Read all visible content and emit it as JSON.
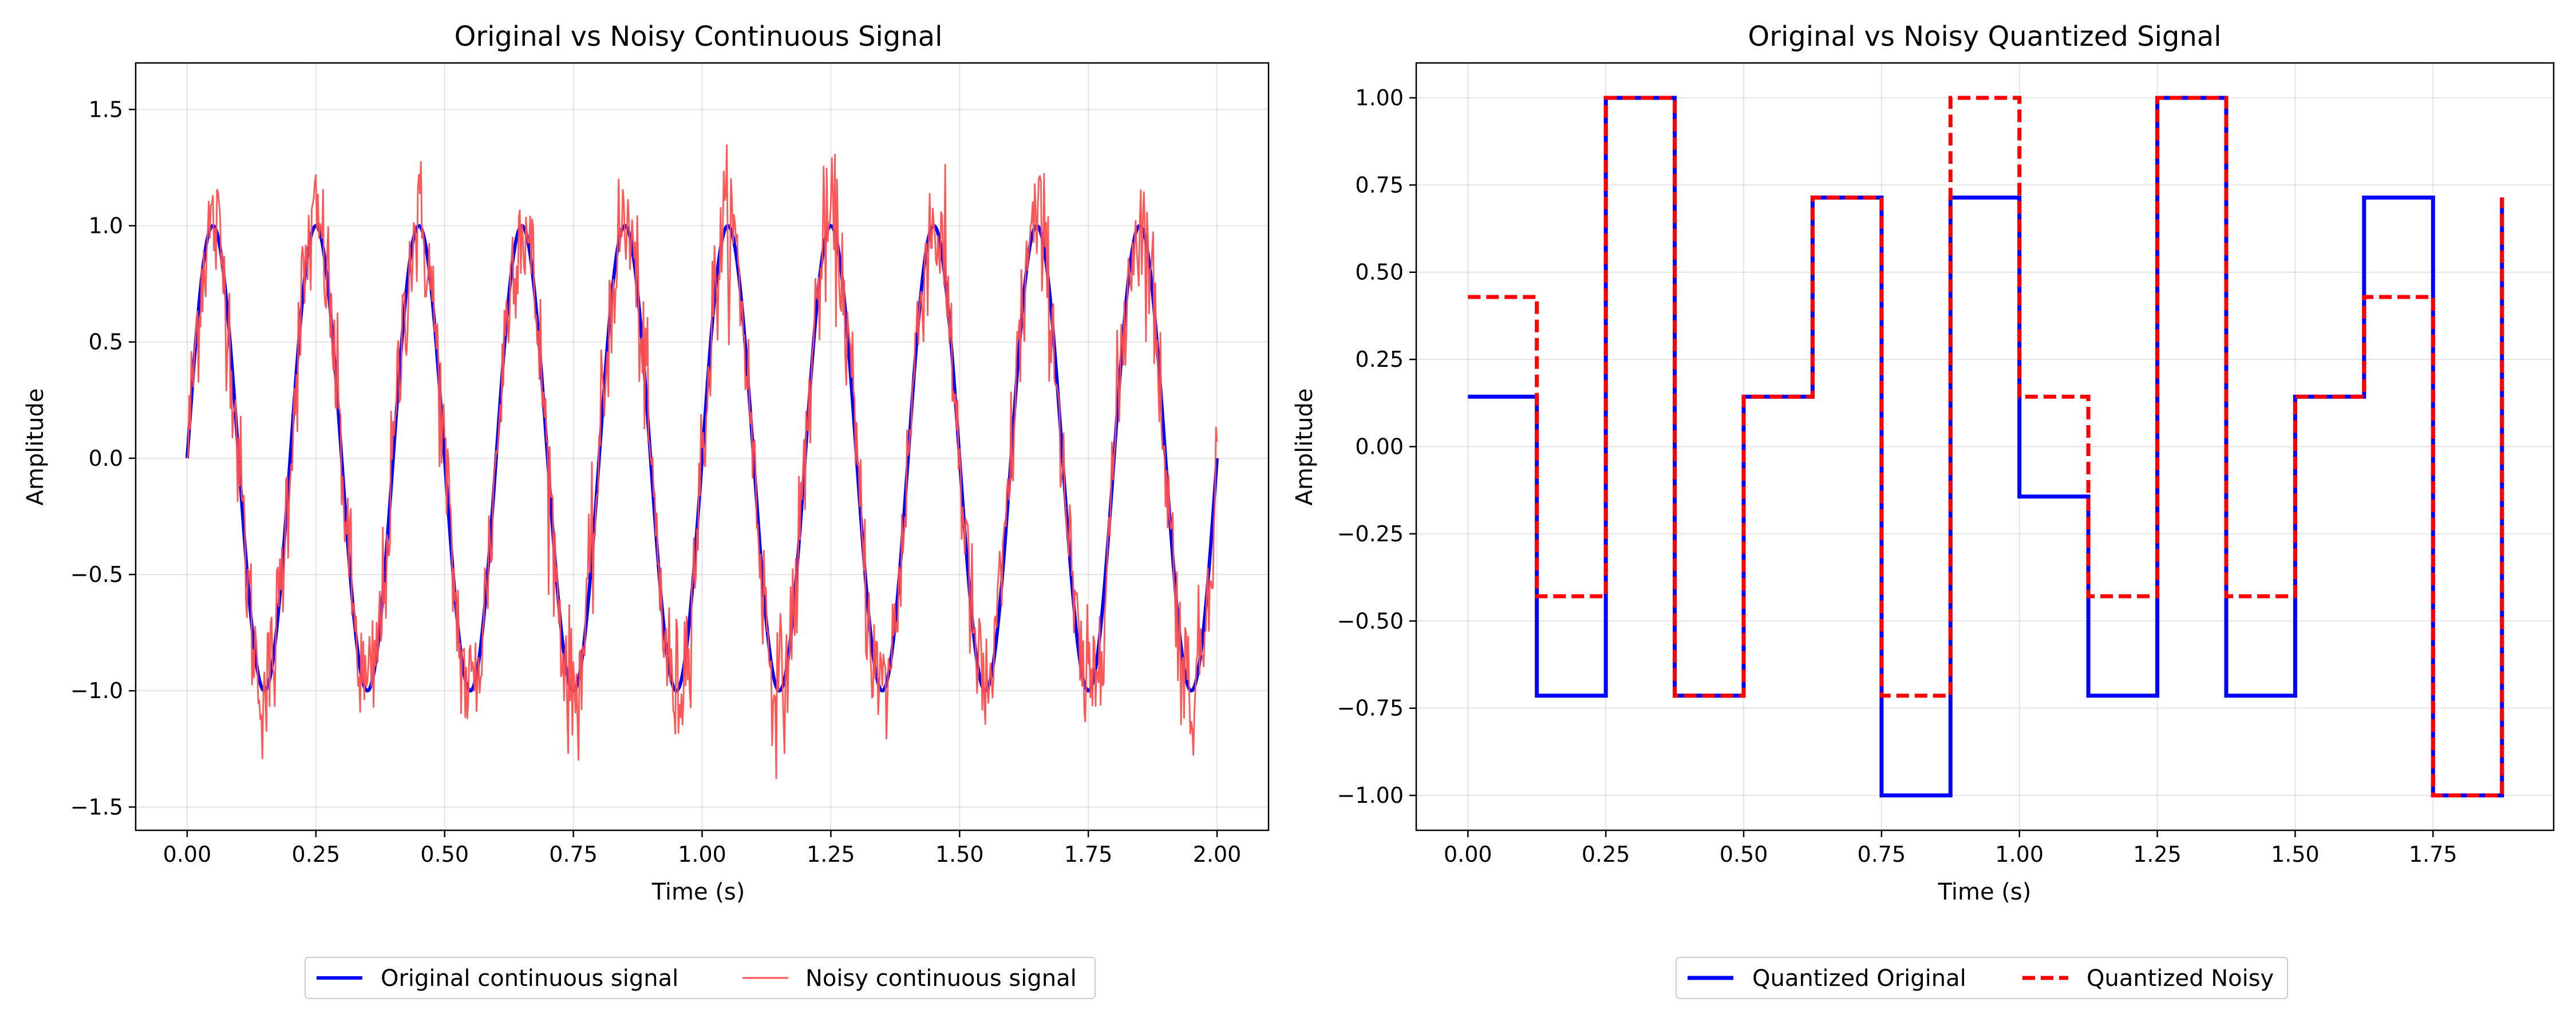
{
  "chart_data": [
    {
      "type": "line",
      "title": "Original vs Noisy Continuous Signal",
      "xlabel": "Time (s)",
      "ylabel": "Amplitude",
      "xlim": [
        -0.1,
        2.1
      ],
      "ylim": [
        -1.6,
        1.7
      ],
      "xticks": [
        0.0,
        0.25,
        0.5,
        0.75,
        1.0,
        1.25,
        1.5,
        1.75,
        2.0
      ],
      "xtick_labels": [
        "0.00",
        "0.25",
        "0.50",
        "0.75",
        "1.00",
        "1.25",
        "1.50",
        "1.75",
        "2.00"
      ],
      "yticks": [
        -1.5,
        -1.0,
        -0.5,
        0.0,
        0.5,
        1.0,
        1.5
      ],
      "ytick_labels": [
        "−1.5",
        "−1.0",
        "−0.5",
        "0.0",
        "0.5",
        "1.0",
        "1.5"
      ],
      "grid": true,
      "legend_position": "bottom-center",
      "series": [
        {
          "name": "Original continuous signal",
          "color": "#0000ff",
          "style": "solid",
          "function": "sin(2*pi*5*t)",
          "x_range": [
            0.0,
            2.0
          ]
        },
        {
          "name": "Noisy continuous signal",
          "color": "#ff4d4d",
          "style": "solid-thin",
          "function": "sin(2*pi*5*t) + gaussian noise (sigma ~0.15)",
          "x_range": [
            0.0,
            2.0
          ]
        }
      ]
    },
    {
      "type": "line",
      "title": "Original vs Noisy Quantized Signal",
      "xlabel": "Time (s)",
      "ylabel": "Amplitude",
      "xlim": [
        -0.09375,
        1.96875
      ],
      "ylim": [
        -1.1,
        1.1
      ],
      "xticks": [
        0.0,
        0.25,
        0.5,
        0.75,
        1.0,
        1.25,
        1.5,
        1.75
      ],
      "xtick_labels": [
        "0.00",
        "0.25",
        "0.50",
        "0.75",
        "1.00",
        "1.25",
        "1.50",
        "1.75"
      ],
      "yticks": [
        -1.0,
        -0.75,
        -0.5,
        -0.25,
        0.0,
        0.25,
        0.5,
        0.75,
        1.0
      ],
      "ytick_labels": [
        "−1.00",
        "−0.75",
        "−0.50",
        "−0.25",
        "0.00",
        "0.25",
        "0.50",
        "0.75",
        "1.00"
      ],
      "grid": true,
      "legend_position": "bottom-center",
      "step": "post",
      "x": [
        0.0,
        0.125,
        0.25,
        0.375,
        0.5,
        0.625,
        0.75,
        0.875,
        1.0,
        1.125,
        1.25,
        1.375,
        1.5,
        1.625,
        1.75,
        1.875
      ],
      "series": [
        {
          "name": "Quantized Original",
          "color": "#0000ff",
          "style": "solid",
          "values": [
            0.143,
            -0.714,
            1.0,
            -0.714,
            0.143,
            0.714,
            -1.0,
            0.714,
            -0.143,
            -0.714,
            1.0,
            -0.714,
            0.143,
            0.714,
            -1.0,
            0.714
          ]
        },
        {
          "name": "Quantized Noisy",
          "color": "#ff0000",
          "style": "dashed",
          "values": [
            0.429,
            -0.429,
            1.0,
            -0.714,
            0.143,
            0.714,
            -0.714,
            1.0,
            0.143,
            -0.429,
            1.0,
            -0.429,
            0.143,
            0.429,
            -1.0,
            0.714
          ]
        }
      ]
    }
  ]
}
